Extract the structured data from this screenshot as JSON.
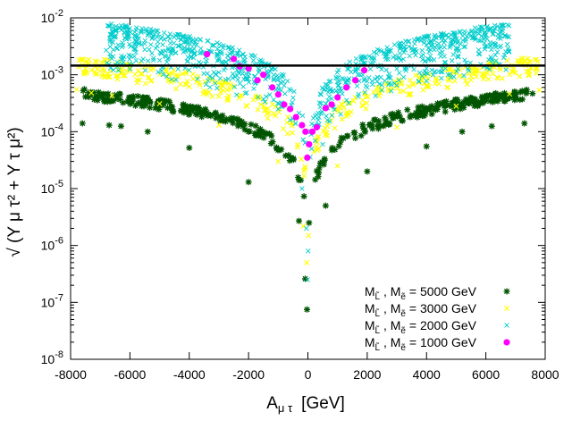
{
  "chart_data": {
    "type": "scatter",
    "x_axis": {
      "label": "A",
      "label_sub": "μ τ",
      "label_unit": "[GeV]",
      "range": [
        -8000,
        8000
      ],
      "ticks": [
        -8000,
        -6000,
        -4000,
        -2000,
        0,
        2000,
        4000,
        6000,
        8000
      ],
      "tick_labels": [
        "-8000",
        "-6000",
        "-4000",
        "-2000",
        "0",
        "2000",
        "4000",
        "6000",
        "8000"
      ]
    },
    "y_axis": {
      "label": "√ (Y μ τ² + Y τ μ²)",
      "scale": "log",
      "range": [
        1e-08,
        0.01
      ],
      "tick_exponents": [
        -8,
        -7,
        -6,
        -5,
        -4,
        -3,
        -2
      ],
      "tick_base": "10"
    },
    "reference_line": {
      "y": 0.00145,
      "color": "#000000"
    },
    "series": [
      {
        "name": "M_L̃ , M_ẽ = 5000 GeV",
        "legend_prefix": "M",
        "legend_sub1": "L̃",
        "legend_sub2": "ẽ",
        "legend_value": "= 5000 GeV",
        "marker": "star",
        "color": "#005500",
        "envelope": {
          "a": 6.2e-05,
          "p": 2.05,
          "x_start": 80,
          "x_end": 7600,
          "spread": [
            0.75,
            1.15
          ]
        },
        "points": [
          [
            -7600,
            0.00014
          ],
          [
            -6700,
            0.00013
          ],
          [
            -6300,
            0.000125
          ],
          [
            -5400,
            0.0001
          ],
          [
            -4000,
            5.2e-05
          ],
          [
            -2000,
            1.3e-05
          ],
          [
            -300,
            2.7e-06
          ],
          [
            -90,
            2.6e-07
          ],
          [
            -30,
            7.5e-08
          ],
          [
            40,
            2.5e-06
          ],
          [
            600,
            5e-06
          ],
          [
            2000,
            2e-05
          ],
          [
            4000,
            5.5e-05
          ],
          [
            5200,
            0.0001
          ],
          [
            6200,
            0.000125
          ],
          [
            7300,
            0.00014
          ]
        ]
      },
      {
        "name": "M_L̃ , M_ẽ = 3000 GeV",
        "legend_prefix": "M",
        "legend_sub1": "L̃",
        "legend_sub2": "ẽ",
        "legend_value": "= 3000 GeV",
        "marker": "cross",
        "color": "#ffff00",
        "envelope": {
          "a": 0.00021,
          "p": 2.0,
          "x_start": 50,
          "x_end": 7800,
          "spread": [
            0.6,
            1.3
          ]
        },
        "points": [
          [
            -7800,
            0.00055
          ],
          [
            -7300,
            0.00048
          ],
          [
            -6600,
            0.00043
          ],
          [
            -5000,
            0.00031
          ],
          [
            -3000,
            0.00013
          ],
          [
            -1000,
            3e-05
          ],
          [
            -150,
            2.2e-06
          ],
          [
            -40,
            5e-07
          ],
          [
            20,
            1.5e-06
          ],
          [
            1000,
            2.5e-05
          ],
          [
            3000,
            0.00012
          ],
          [
            5000,
            0.00028
          ],
          [
            6800,
            0.00046
          ],
          [
            7800,
            0.00054
          ]
        ]
      },
      {
        "name": "M_L̃ , M_ẽ = 2000 GeV",
        "legend_prefix": "M",
        "legend_sub1": "L̃",
        "legend_sub2": "ẽ",
        "legend_value": "= 2000 GeV",
        "marker": "x",
        "color": "#00cccc",
        "envelope": {
          "a": 0.0006,
          "p": 2.0,
          "x_start": 30,
          "x_end": 6800,
          "spread": [
            0.3,
            2.0
          ]
        },
        "points": [
          [
            -6800,
            0.0027
          ],
          [
            -6300,
            0.0019
          ],
          [
            -5000,
            0.0018
          ],
          [
            -3000,
            0.0011
          ],
          [
            -1000,
            0.00025
          ],
          [
            -200,
            1e-05
          ],
          [
            -50,
            2e-06
          ],
          [
            -10,
            2.5e-07
          ],
          [
            10,
            8e-07
          ],
          [
            500,
            6e-05
          ],
          [
            2000,
            0.0006
          ],
          [
            4000,
            0.0013
          ],
          [
            5000,
            0.0029
          ],
          [
            6200,
            0.0019
          ],
          [
            6600,
            0.002
          ]
        ]
      },
      {
        "name": "M_L̃ , M_ẽ = 1000 GeV",
        "legend_prefix": "M",
        "legend_sub1": "L̃",
        "legend_sub2": "ẽ",
        "legend_value": "= 1000 GeV",
        "marker": "dot",
        "color": "#ff00ff",
        "envelope": {
          "a": 0.0014,
          "p": 2.0,
          "x_start": 40,
          "x_end": 3400,
          "spread": [
            0.45,
            1.6
          ]
        },
        "points": [
          [
            -3400,
            0.0023
          ],
          [
            -2500,
            0.0019
          ],
          [
            -2300,
            0.0014
          ],
          [
            -2000,
            0.0013
          ],
          [
            -1700,
            0.0008
          ],
          [
            -1500,
            0.001
          ],
          [
            -1200,
            0.0006
          ],
          [
            -1000,
            0.00045
          ],
          [
            -800,
            0.0003
          ],
          [
            -600,
            0.00025
          ],
          [
            -400,
            0.00018
          ],
          [
            -200,
            0.00013
          ],
          [
            -80,
            0.0001
          ],
          [
            -20,
            3.5e-05
          ],
          [
            40,
            6e-05
          ],
          [
            150,
            0.0001
          ],
          [
            300,
            0.00012
          ],
          [
            600,
            0.00026
          ],
          [
            800,
            0.0003
          ],
          [
            1000,
            0.0004
          ],
          [
            1300,
            0.0006
          ],
          [
            1600,
            0.0008
          ],
          [
            1900,
            0.0012
          ]
        ]
      }
    ]
  }
}
